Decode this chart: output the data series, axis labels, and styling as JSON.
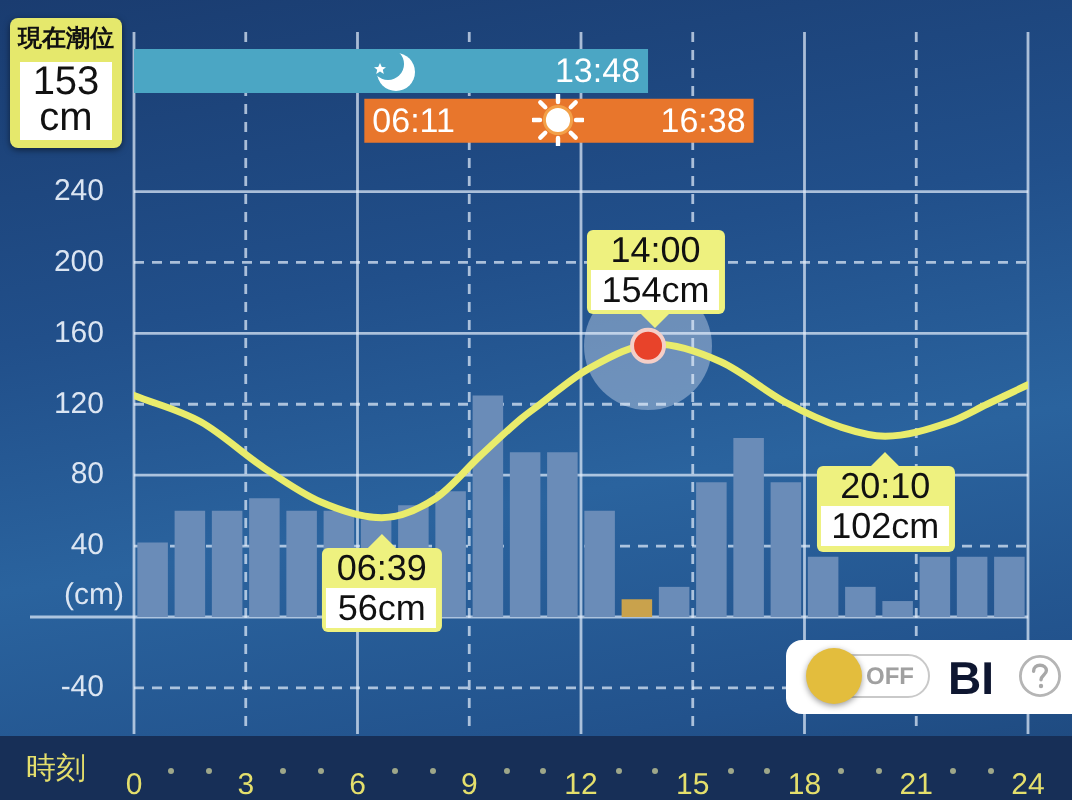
{
  "chart_data": {
    "type": "line",
    "title": "現在潮位",
    "subtitle": "153 cm",
    "xlabel": "時刻",
    "ylabel": "(cm)",
    "xlim": [
      0,
      24
    ],
    "ylim": [
      -66,
      330
    ],
    "xticks": [
      0,
      3,
      6,
      9,
      12,
      15,
      18,
      21,
      24
    ],
    "yticks": [
      -40,
      {
        "value": 0,
        "label": null
      },
      40,
      80,
      120,
      160,
      200,
      240
    ],
    "grid": true,
    "legend": false,
    "series": [
      {
        "type": "bar",
        "colors": [
          "#6a8cb8",
          "#6a8cb8",
          "#6a8cb8",
          "#6a8cb8",
          "#6a8cb8",
          "#6a8cb8",
          "#6a8cb8",
          "#6a8cb8",
          "#6a8cb8",
          "#6a8cb8",
          "#6a8cb8",
          "#6a8cb8",
          "#6a8cb8",
          "#c9a24c",
          "#6a8cb8",
          "#6a8cb8",
          "#6a8cb8",
          "#6a8cb8",
          "#6a8cb8",
          "#6a8cb8",
          "#6a8cb8",
          "#6a8cb8",
          "#6a8cb8",
          "#6a8cb8"
        ],
        "x": [
          0.5,
          1.5,
          2.5,
          3.5,
          4.5,
          5.5,
          6.5,
          7.5,
          8.5,
          9.5,
          10.5,
          11.5,
          12.5,
          13.5,
          14.5,
          15.5,
          16.5,
          17.5,
          18.5,
          19.5,
          20.5,
          21.5,
          22.5,
          23.5
        ],
        "values": [
          42,
          60,
          60,
          67,
          60,
          60,
          55,
          63,
          71,
          125,
          93,
          93,
          60,
          10,
          17,
          76,
          101,
          76,
          34,
          17,
          9,
          34,
          34,
          34
        ]
      },
      {
        "color": "#e9ec6c",
        "marker": "none",
        "x": [
          0,
          1.8,
          3.5,
          5.0,
          6.65,
          8.1,
          9.3,
          10.4,
          10.9,
          12.2,
          14,
          15.75,
          17.5,
          19.0,
          20.167,
          21.9,
          22.9,
          24
        ],
        "values": [
          125,
          110,
          84,
          65,
          56,
          67,
          91,
          112,
          120,
          140,
          154,
          144,
          121,
          107,
          102,
          110,
          120,
          131
        ]
      },
      {
        "type": "scatter",
        "color": "#e8432a",
        "marker": "circle",
        "x": [
          13.8
        ],
        "values": [
          153
        ]
      }
    ],
    "bands": [
      {
        "axis": "x",
        "from": 0,
        "to": 13.8,
        "color": "#4ba6c4"
      },
      {
        "axis": "x",
        "from": 6.183,
        "to": 16.633,
        "color": "#e8762c"
      }
    ],
    "annotations": [
      {
        "text": "13:48",
        "x": 13.8,
        "y": 308
      },
      {
        "text": "06:11",
        "x": 6.183,
        "y": 280
      },
      {
        "text": "16:38",
        "x": 16.633,
        "y": 280
      },
      {
        "text": "06:39\n56cm",
        "x": 6.65,
        "y": 56
      },
      {
        "text": "14:00\n154cm",
        "x": 14,
        "y": 154
      },
      {
        "text": "20:10\n102cm",
        "x": 20.167,
        "y": 102
      },
      "OFF",
      "BI"
    ]
  }
}
